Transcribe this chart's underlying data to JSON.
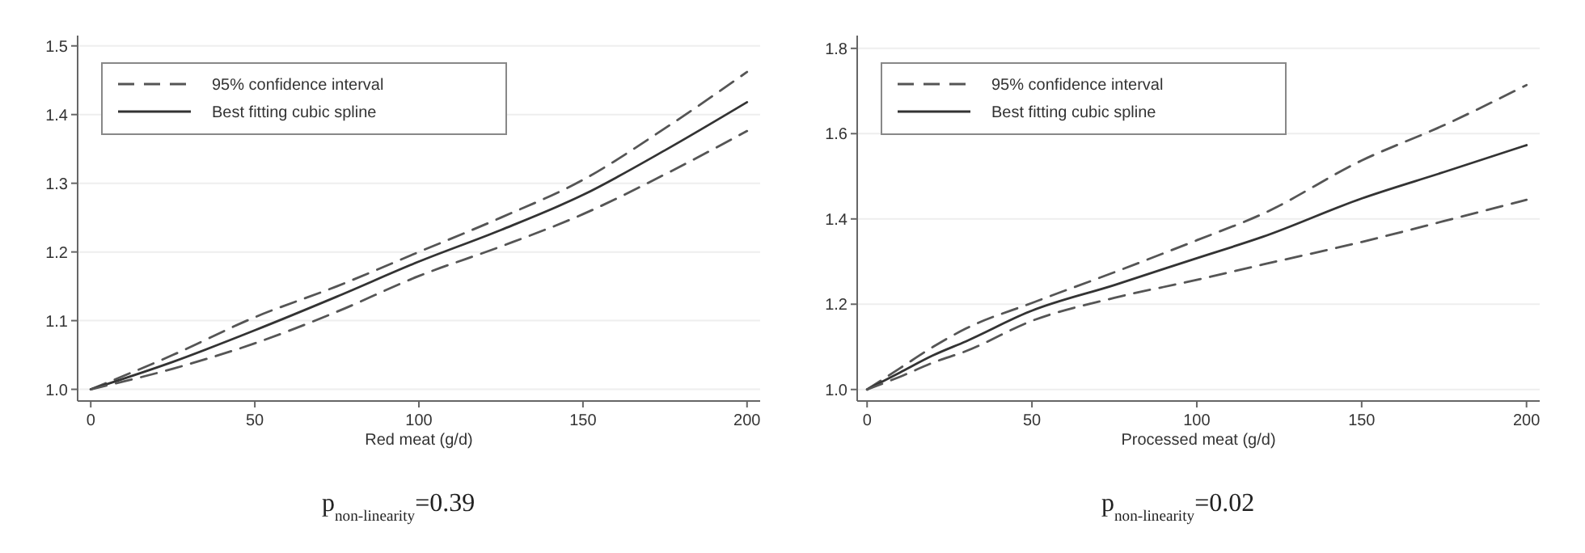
{
  "chart_data": [
    {
      "type": "line",
      "xlabel": "Red meat (g/d)",
      "xlim": [
        -4,
        204
      ],
      "ylim": [
        0.983,
        1.515
      ],
      "xticks": [
        0,
        50,
        100,
        150,
        200
      ],
      "yticks": [
        {
          "value": 1,
          "label": "1.0"
        },
        1.1,
        1.2,
        1.3,
        1.4,
        1.5
      ],
      "grid": "y",
      "legend": "top left",
      "annotations": [
        "p$_{non-linearity}$=0.39"
      ],
      "x": [
        0,
        25,
        50,
        75,
        100,
        125,
        150,
        175,
        200
      ],
      "series": [
        {
          "name": "95% confidence interval",
          "color": "#555555",
          "line_style": "dashed",
          "values": [
            1.0,
            1.05,
            1.105,
            1.15,
            1.2,
            1.25,
            1.305,
            1.38,
            1.462
          ]
        },
        {
          "name": "Best fitting cubic spline",
          "color": "#333333",
          "line_style": "solid",
          "values": [
            1.0,
            1.04,
            1.086,
            1.135,
            1.186,
            1.232,
            1.283,
            1.348,
            1.418
          ]
        },
        {
          "color": "#555555",
          "line_style": "dashed",
          "values": [
            1.0,
            1.03,
            1.067,
            1.113,
            1.165,
            1.208,
            1.255,
            1.313,
            1.376
          ]
        }
      ]
    },
    {
      "type": "line",
      "xlabel": "Processed meat (g/d)",
      "xlim": [
        -3,
        204
      ],
      "ylim": [
        0.973,
        1.83
      ],
      "xticks": [
        0,
        50,
        100,
        150,
        200
      ],
      "yticks": [
        {
          "value": 1,
          "label": "1.0"
        },
        1.2,
        1.4,
        1.6,
        1.8
      ],
      "grid": "y",
      "legend": "top left",
      "annotations": [
        "p$_{non-linearity}$=0.02"
      ],
      "x": [
        0,
        10,
        20,
        30,
        50,
        75,
        100,
        120,
        150,
        175,
        200
      ],
      "series": [
        {
          "name": "95% confidence interval",
          "color": "#555555",
          "line_style": "dashed",
          "values": [
            1.0,
            1.05,
            1.1,
            1.143,
            1.203,
            1.275,
            1.35,
            1.412,
            1.537,
            1.62,
            1.714
          ]
        },
        {
          "name": "Best fitting cubic spline",
          "color": "#333333",
          "line_style": "solid",
          "values": [
            1.0,
            1.04,
            1.08,
            1.113,
            1.185,
            1.245,
            1.308,
            1.358,
            1.448,
            1.51,
            1.573
          ]
        },
        {
          "color": "#555555",
          "line_style": "dashed",
          "values": [
            1.0,
            1.03,
            1.063,
            1.09,
            1.161,
            1.215,
            1.257,
            1.293,
            1.346,
            1.395,
            1.445
          ]
        }
      ]
    }
  ]
}
